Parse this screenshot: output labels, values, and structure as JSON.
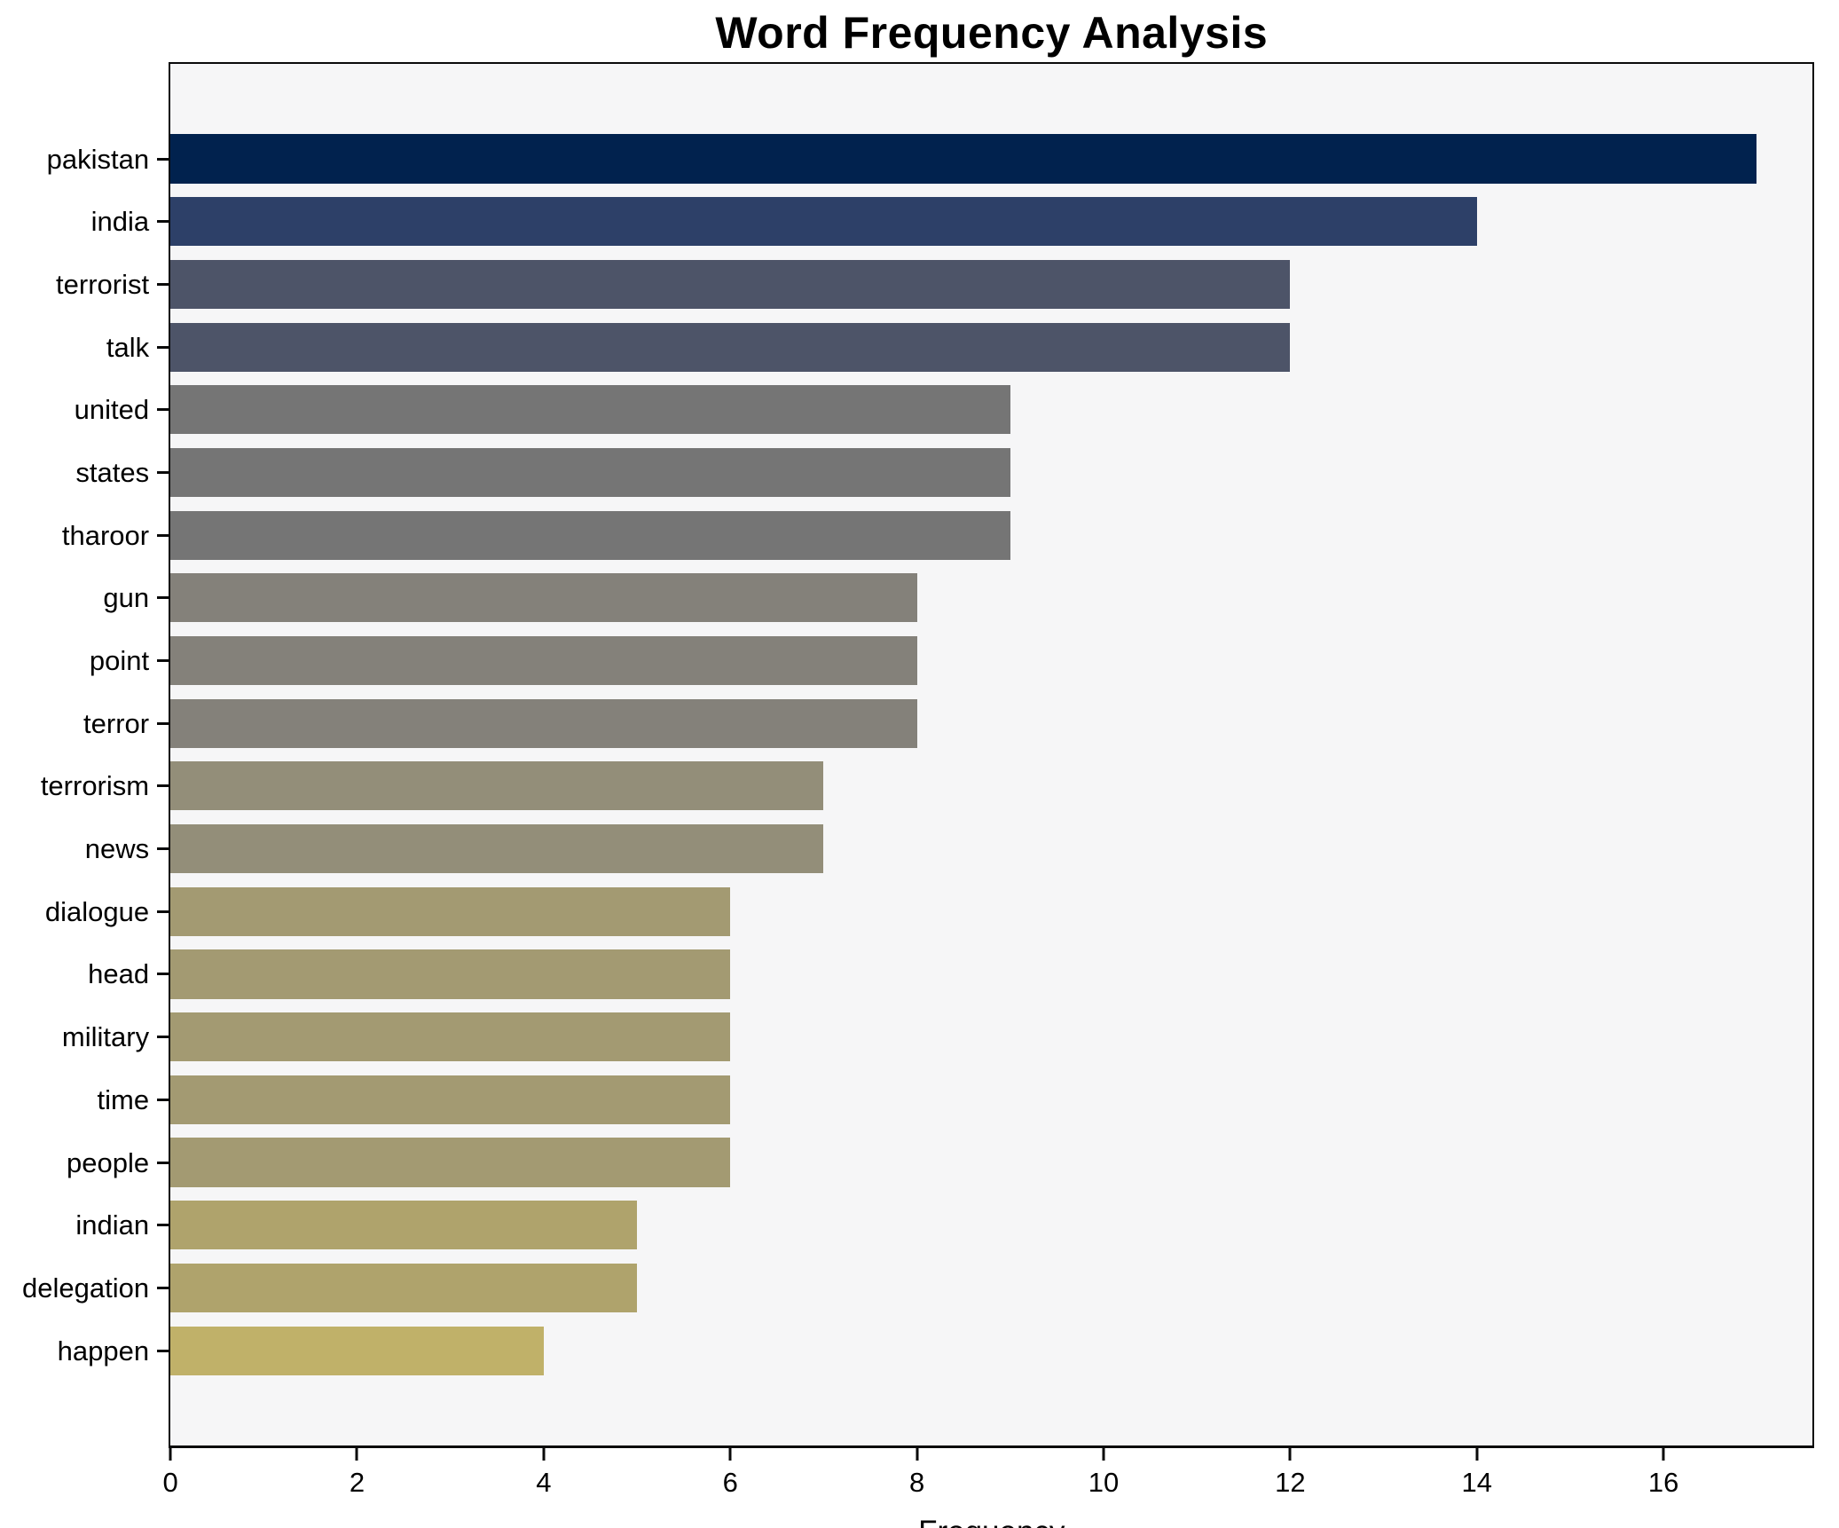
{
  "chart_data": {
    "type": "bar",
    "orientation": "horizontal",
    "title": "Word Frequency Analysis",
    "xlabel": "Frequency",
    "ylabel": "",
    "xlim": [
      0,
      17.6
    ],
    "xticks": [
      0,
      2,
      4,
      6,
      8,
      10,
      12,
      14,
      16
    ],
    "grid": false,
    "legend_position": "none",
    "categories": [
      "pakistan",
      "india",
      "terrorist",
      "talk",
      "united",
      "states",
      "tharoor",
      "gun",
      "point",
      "terror",
      "terrorism",
      "news",
      "dialogue",
      "head",
      "military",
      "time",
      "people",
      "indian",
      "delegation",
      "happen"
    ],
    "values": [
      17,
      14,
      12,
      12,
      9,
      9,
      9,
      8,
      8,
      8,
      7,
      7,
      6,
      6,
      6,
      6,
      6,
      5,
      5,
      4
    ],
    "bar_colors": [
      "#01224e",
      "#2d4068",
      "#4d5468",
      "#4d5468",
      "#757575",
      "#757575",
      "#757575",
      "#84817a",
      "#84817a",
      "#84817a",
      "#938e79",
      "#938e79",
      "#a39a72",
      "#a39a72",
      "#a39a72",
      "#a39a72",
      "#a39a72",
      "#afa36c",
      "#afa36c",
      "#c0b169"
    ]
  },
  "colors": {
    "figure_bg": "#ffffff",
    "plot_bg": "#f6f6f7",
    "spine": "#0a0a0a",
    "text": "#000000"
  }
}
